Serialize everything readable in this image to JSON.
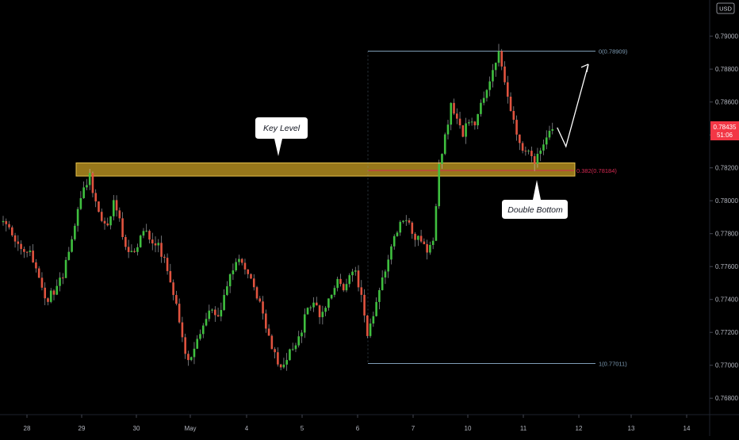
{
  "chart_data": {
    "type": "candlestick",
    "currency": "USD",
    "ylim": [
      0.767,
      0.7922
    ],
    "y_ticks": [
      "0.79000",
      "0.78800",
      "0.78600",
      "0.78400",
      "0.78200",
      "0.78000",
      "0.77800",
      "0.77600",
      "0.77400",
      "0.77200",
      "0.77000",
      "0.76800"
    ],
    "y_tick_values": [
      0.79,
      0.788,
      0.786,
      0.784,
      0.782,
      0.78,
      0.778,
      0.776,
      0.774,
      0.772,
      0.77,
      0.768
    ],
    "x_ticks": [
      "28",
      "29",
      "30",
      "May",
      "4",
      "5",
      "6",
      "7",
      "10",
      "11",
      "12",
      "13",
      "14"
    ],
    "price_label": {
      "value": "0.78435",
      "countdown": "51:06"
    },
    "key_level": {
      "label": "Key Level",
      "low": 0.7815,
      "high": 0.7823
    },
    "double_bottom": {
      "label": "Double Bottom"
    },
    "fibonacci": [
      {
        "level": 0,
        "label": "0(0.78909)",
        "price": 0.78909
      },
      {
        "level": 0.382,
        "label": "0.382(0.78184)",
        "price": 0.78184
      },
      {
        "level": 1,
        "label": "1(0.77011)",
        "price": 0.77011
      }
    ],
    "projection": {
      "start": 0.7833,
      "end": 0.7883
    },
    "path_points": [
      [
        0,
        0.7787
      ],
      [
        3,
        0.778
      ],
      [
        6,
        0.7772
      ],
      [
        8,
        0.777
      ],
      [
        10,
        0.7765
      ],
      [
        12,
        0.7752
      ],
      [
        14,
        0.7738
      ],
      [
        16,
        0.7743
      ],
      [
        18,
        0.7748
      ],
      [
        20,
        0.7755
      ],
      [
        22,
        0.777
      ],
      [
        24,
        0.7785
      ],
      [
        26,
        0.78
      ],
      [
        28,
        0.7812
      ],
      [
        29,
        0.7818
      ],
      [
        30,
        0.7802
      ],
      [
        32,
        0.7792
      ],
      [
        34,
        0.7785
      ],
      [
        36,
        0.779
      ],
      [
        37,
        0.7802
      ],
      [
        38,
        0.7795
      ],
      [
        40,
        0.778
      ],
      [
        42,
        0.7768
      ],
      [
        44,
        0.777
      ],
      [
        46,
        0.7778
      ],
      [
        48,
        0.7782
      ],
      [
        50,
        0.7776
      ],
      [
        52,
        0.7772
      ],
      [
        54,
        0.7765
      ],
      [
        56,
        0.7752
      ],
      [
        58,
        0.7735
      ],
      [
        60,
        0.7715
      ],
      [
        62,
        0.7703
      ],
      [
        64,
        0.7712
      ],
      [
        66,
        0.772
      ],
      [
        68,
        0.7728
      ],
      [
        70,
        0.7735
      ],
      [
        72,
        0.7728
      ],
      [
        74,
        0.774
      ],
      [
        76,
        0.7755
      ],
      [
        78,
        0.7762
      ],
      [
        80,
        0.7763
      ],
      [
        82,
        0.7755
      ],
      [
        84,
        0.7748
      ],
      [
        86,
        0.7738
      ],
      [
        88,
        0.7725
      ],
      [
        90,
        0.7712
      ],
      [
        92,
        0.77
      ],
      [
        94,
        0.7698
      ],
      [
        96,
        0.7708
      ],
      [
        98,
        0.7712
      ],
      [
        100,
        0.7722
      ],
      [
        102,
        0.7735
      ],
      [
        104,
        0.774
      ],
      [
        106,
        0.7728
      ],
      [
        108,
        0.7735
      ],
      [
        110,
        0.7745
      ],
      [
        112,
        0.7752
      ],
      [
        114,
        0.7748
      ],
      [
        116,
        0.7755
      ],
      [
        118,
        0.7757
      ],
      [
        120,
        0.7742
      ],
      [
        122,
        0.7718
      ],
      [
        124,
        0.7732
      ],
      [
        126,
        0.7748
      ],
      [
        128,
        0.7758
      ],
      [
        130,
        0.777
      ],
      [
        132,
        0.7782
      ],
      [
        134,
        0.779
      ],
      [
        136,
        0.7785
      ],
      [
        138,
        0.7778
      ],
      [
        140,
        0.7774
      ],
      [
        142,
        0.777
      ],
      [
        144,
        0.7775
      ],
      [
        146,
        0.782
      ],
      [
        148,
        0.7838
      ],
      [
        150,
        0.7858
      ],
      [
        152,
        0.7848
      ],
      [
        154,
        0.784
      ],
      [
        156,
        0.785
      ],
      [
        158,
        0.7845
      ],
      [
        160,
        0.7858
      ],
      [
        162,
        0.7868
      ],
      [
        164,
        0.788
      ],
      [
        166,
        0.7889
      ],
      [
        168,
        0.787
      ],
      [
        170,
        0.7855
      ],
      [
        172,
        0.784
      ],
      [
        174,
        0.783
      ],
      [
        176,
        0.7828
      ],
      [
        178,
        0.7825
      ],
      [
        180,
        0.7828
      ],
      [
        182,
        0.7838
      ],
      [
        184,
        0.7845
      ]
    ]
  }
}
